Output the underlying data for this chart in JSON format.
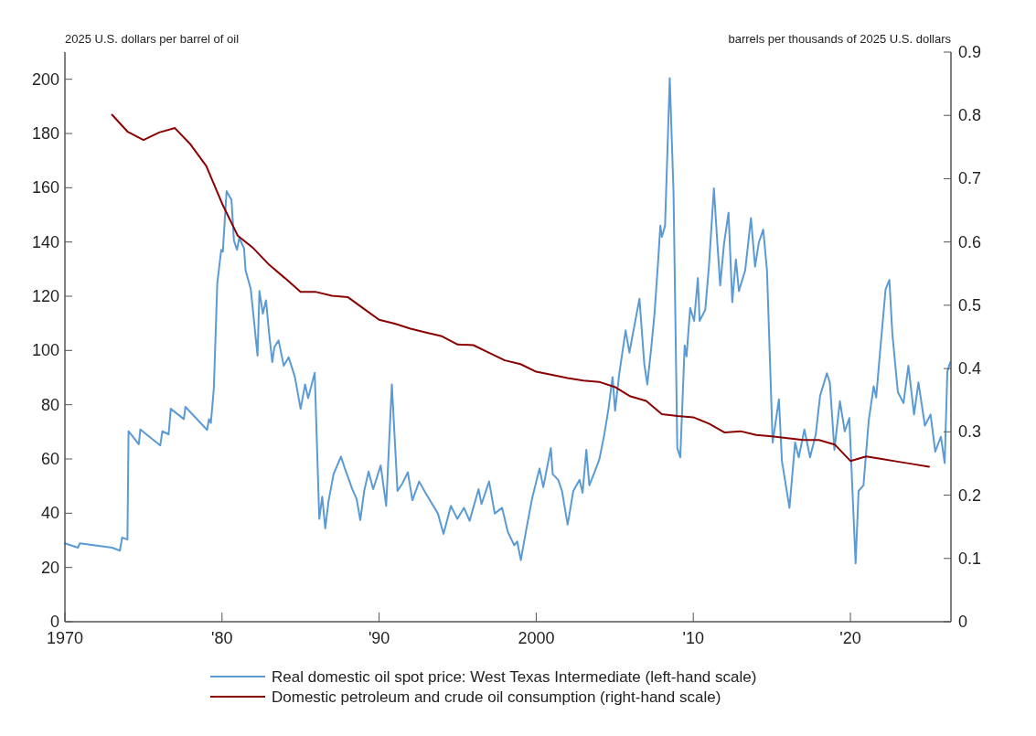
{
  "chart_data": {
    "type": "line",
    "ylabel": "2025 U.S. dollars per barrel of oil",
    "y2label": "barrels per thousands of 2025 U.S. dollars",
    "xlim": [
      1970,
      2026.4
    ],
    "xticks": [
      1970,
      {
        "value": 1980,
        "label": "'80"
      },
      {
        "value": 1990,
        "label": "'90"
      },
      2000,
      {
        "value": 2010,
        "label": "'10"
      },
      {
        "value": 2020,
        "label": "'20"
      }
    ],
    "ylim": [
      0,
      210
    ],
    "yticks": [
      0,
      20,
      40,
      60,
      80,
      100,
      120,
      140,
      160,
      180,
      200
    ],
    "y2lim": [
      0,
      0.9
    ],
    "y2ticks": [
      0,
      0.1,
      0.2,
      0.3,
      0.4,
      0.5,
      0.6,
      0.7,
      0.8,
      0.9
    ],
    "grid": false,
    "legend": "bottom",
    "marker": "none",
    "line_style": "solid",
    "series": [
      {
        "name": "Real domestic oil spot price: West Texas Intermediate (left-hand scale)",
        "color": "#5b9bd5",
        "x": [
          1970.0,
          1970.83,
          1970.95,
          1973.0,
          1973.5,
          1973.64,
          1973.98,
          1974.05,
          1974.7,
          1974.8,
          1976.07,
          1976.2,
          1976.6,
          1976.74,
          1977.57,
          1977.67,
          1979.05,
          1979.17,
          1979.29,
          1979.48,
          1979.7,
          1979.95,
          1980.05,
          1980.29,
          1980.6,
          1980.76,
          1980.95,
          1981.1,
          1981.4,
          1981.5,
          1981.83,
          1982.26,
          1982.38,
          1982.6,
          1982.8,
          1983.0,
          1983.2,
          1983.33,
          1983.6,
          1983.93,
          1984.24,
          1984.64,
          1985.0,
          1985.29,
          1985.48,
          1985.9,
          1986.19,
          1986.38,
          1986.57,
          1986.79,
          1987.1,
          1987.57,
          1987.86,
          1988.29,
          1988.57,
          1988.8,
          1989.05,
          1989.33,
          1989.62,
          1990.1,
          1990.45,
          1990.81,
          1991.17,
          1991.48,
          1991.83,
          1992.12,
          1992.55,
          1992.95,
          1993.74,
          1994.1,
          1994.57,
          1994.98,
          1995.4,
          1995.76,
          1996.33,
          1996.52,
          1997.0,
          1997.36,
          1997.83,
          1998.19,
          1998.6,
          1998.79,
          1999.02,
          1999.38,
          1999.74,
          2000.21,
          2000.45,
          2000.93,
          2001.05,
          2001.4,
          2001.64,
          2002.0,
          2002.36,
          2002.76,
          2002.95,
          2003.19,
          2003.38,
          2003.71,
          2004.02,
          2004.33,
          2004.6,
          2004.86,
          2005.02,
          2005.29,
          2005.69,
          2005.93,
          2006.17,
          2006.57,
          2006.88,
          2007.07,
          2007.29,
          2007.52,
          2007.76,
          2007.9,
          2008.0,
          2008.2,
          2008.5,
          2008.74,
          2008.98,
          2009.17,
          2009.45,
          2009.57,
          2009.8,
          2010.05,
          2010.29,
          2010.4,
          2010.76,
          2011.0,
          2011.31,
          2011.52,
          2011.71,
          2011.95,
          2012.24,
          2012.48,
          2012.71,
          2012.9,
          2013.3,
          2013.67,
          2013.93,
          2014.17,
          2014.45,
          2014.69,
          2015.05,
          2015.45,
          2015.64,
          2016.12,
          2016.48,
          2016.71,
          2017.07,
          2017.43,
          2017.79,
          2018.07,
          2018.5,
          2018.69,
          2018.98,
          2019.33,
          2019.64,
          2019.93,
          2020.33,
          2020.52,
          2020.83,
          2021.17,
          2021.48,
          2021.64,
          2021.83,
          2022.24,
          2022.48,
          2022.67,
          2023.02,
          2023.38,
          2023.69,
          2024.05,
          2024.33,
          2024.74,
          2025.1,
          2025.4,
          2025.76,
          2026.0,
          2026.17,
          2026.36
        ],
        "values": [
          28.9,
          27.3,
          28.9,
          27.3,
          26.2,
          31.0,
          30.3,
          70.2,
          65.4,
          70.9,
          65.0,
          70.2,
          69.1,
          78.5,
          74.7,
          79.2,
          70.7,
          74.7,
          73.3,
          86.1,
          124.9,
          137.1,
          136.4,
          158.8,
          155.6,
          140.5,
          137.1,
          141.5,
          137.7,
          129.5,
          122.6,
          98.1,
          121.9,
          113.6,
          118.5,
          106.1,
          95.7,
          101.2,
          103.7,
          94.4,
          97.5,
          90.2,
          78.5,
          87.5,
          82.4,
          91.8,
          37.9,
          46.1,
          34.4,
          44.8,
          54.4,
          60.9,
          55.8,
          48.9,
          45.2,
          37.5,
          48.2,
          55.4,
          48.9,
          57.6,
          42.7,
          87.5,
          48.2,
          51.0,
          55.1,
          44.8,
          51.7,
          47.5,
          39.9,
          32.4,
          42.7,
          37.9,
          42.0,
          37.2,
          48.9,
          43.4,
          51.7,
          39.9,
          42.0,
          33.1,
          28.2,
          29.6,
          22.7,
          34.4,
          45.5,
          56.5,
          49.6,
          64.0,
          54.4,
          52.3,
          48.2,
          35.8,
          48.2,
          52.3,
          47.5,
          63.4,
          50.3,
          55.1,
          59.9,
          68.9,
          78.5,
          90.2,
          77.8,
          91.6,
          107.4,
          99.2,
          106.7,
          119.1,
          95.0,
          87.5,
          99.2,
          112.9,
          132.9,
          146.0,
          141.9,
          146.0,
          200.4,
          158.4,
          64.0,
          60.6,
          101.9,
          97.8,
          115.7,
          110.9,
          126.7,
          110.9,
          115.0,
          131.5,
          159.8,
          140.5,
          124.0,
          139.1,
          150.8,
          117.8,
          133.6,
          121.9,
          129.5,
          148.8,
          130.9,
          139.8,
          144.6,
          129.5,
          66.1,
          82.0,
          59.2,
          42.0,
          66.1,
          60.6,
          70.9,
          60.6,
          68.9,
          83.3,
          91.6,
          88.2,
          63.4,
          81.3,
          70.2,
          75.1,
          21.5,
          48.2,
          50.3,
          74.4,
          86.8,
          82.7,
          95.7,
          122.6,
          126.0,
          106.1,
          84.7,
          80.6,
          94.4,
          76.4,
          88.2,
          72.3,
          76.4,
          62.7,
          68.2,
          58.5,
          92.3,
          95.7
        ]
      },
      {
        "name": "Domestic petroleum and crude oil consumption (right-hand scale)",
        "color": "#8b0000",
        "axis": "y2",
        "x": [
          1973,
          1974,
          1975,
          1976,
          1977,
          1978,
          1979,
          1980,
          1981,
          1982,
          1983,
          1984,
          1985,
          1986,
          1987,
          1988,
          1989,
          1990,
          1991,
          1992,
          1993,
          1994,
          1995,
          1996,
          1997,
          1998,
          1999,
          2000,
          2001,
          2002,
          2003,
          2004,
          2005,
          2006,
          2007,
          2008,
          2009,
          2010,
          2011,
          2012,
          2013,
          2014,
          2015,
          2016,
          2017,
          2018,
          2019,
          2020,
          2021,
          2022,
          2023,
          2024,
          2025
        ],
        "values": [
          0.801,
          0.774,
          0.761,
          0.773,
          0.78,
          0.754,
          0.72,
          0.661,
          0.61,
          0.59,
          0.564,
          0.543,
          0.521,
          0.521,
          0.515,
          0.513,
          0.495,
          0.477,
          0.471,
          0.463,
          0.457,
          0.451,
          0.438,
          0.437,
          0.425,
          0.413,
          0.407,
          0.395,
          0.39,
          0.385,
          0.381,
          0.379,
          0.371,
          0.356,
          0.349,
          0.328,
          0.325,
          0.323,
          0.313,
          0.299,
          0.301,
          0.295,
          0.293,
          0.29,
          0.287,
          0.287,
          0.28,
          0.254,
          0.261,
          0.257,
          0.253,
          0.249,
          0.245
        ]
      }
    ]
  }
}
